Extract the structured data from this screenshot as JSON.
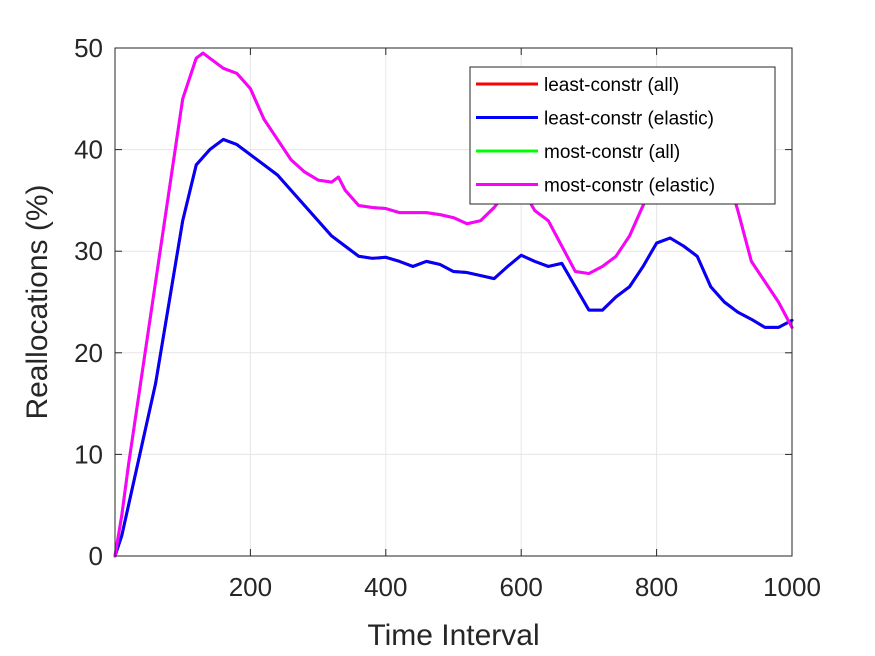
{
  "chart_data": {
    "type": "line",
    "xlabel": "Time Interval",
    "ylabel": "Reallocations (%)",
    "xlim": [
      0,
      1000
    ],
    "ylim": [
      0,
      50
    ],
    "xticks": [
      200,
      400,
      600,
      800,
      1000
    ],
    "yticks": [
      0,
      10,
      20,
      30,
      40,
      50
    ],
    "xtick_labels": [
      "200",
      "400",
      "600",
      "800",
      "1000"
    ],
    "ytick_labels": [
      "0",
      "10",
      "20",
      "30",
      "40",
      "50"
    ],
    "grid": true,
    "legend_position": "top-right",
    "series": [
      {
        "name": "least-constr (all)",
        "color": "#ff0000",
        "x": [
          0,
          10,
          20,
          40,
          60,
          80,
          100,
          120,
          140,
          160,
          180,
          200,
          220,
          240,
          260,
          280,
          300,
          320,
          340,
          360,
          380,
          400,
          420,
          440,
          460,
          480,
          500,
          520,
          540,
          560,
          580,
          600,
          620,
          640,
          660,
          680,
          700,
          720,
          740,
          760,
          780,
          800,
          820,
          840,
          860,
          880,
          900,
          920,
          940,
          960,
          980,
          1000
        ],
        "y": [
          0,
          2,
          5,
          11,
          17,
          25,
          33,
          38.5,
          40,
          41,
          40.5,
          39.5,
          38.5,
          37.5,
          36,
          34.5,
          33,
          31.5,
          30.5,
          29.5,
          29.3,
          29.4,
          29,
          28.5,
          29,
          28.7,
          28,
          27.9,
          27.6,
          27.3,
          28.5,
          29.6,
          29,
          28.5,
          28.8,
          26.5,
          24.2,
          24.2,
          25.5,
          26.5,
          28.5,
          30.8,
          31.3,
          30.5,
          29.5,
          26.5,
          25,
          24,
          23.3,
          22.5,
          22.5,
          23.2
        ]
      },
      {
        "name": "least-constr (elastic)",
        "color": "#0000ff",
        "x": [
          0,
          10,
          20,
          40,
          60,
          80,
          100,
          120,
          140,
          160,
          180,
          200,
          220,
          240,
          260,
          280,
          300,
          320,
          340,
          360,
          380,
          400,
          420,
          440,
          460,
          480,
          500,
          520,
          540,
          560,
          580,
          600,
          620,
          640,
          660,
          680,
          700,
          720,
          740,
          760,
          780,
          800,
          820,
          840,
          860,
          880,
          900,
          920,
          940,
          960,
          980,
          1000
        ],
        "y": [
          0,
          2,
          5,
          11,
          17,
          25,
          33,
          38.5,
          40,
          41,
          40.5,
          39.5,
          38.5,
          37.5,
          36,
          34.5,
          33,
          31.5,
          30.5,
          29.5,
          29.3,
          29.4,
          29,
          28.5,
          29,
          28.7,
          28,
          27.9,
          27.6,
          27.3,
          28.5,
          29.6,
          29,
          28.5,
          28.8,
          26.5,
          24.2,
          24.2,
          25.5,
          26.5,
          28.5,
          30.8,
          31.3,
          30.5,
          29.5,
          26.5,
          25,
          24,
          23.3,
          22.5,
          22.5,
          23.2
        ]
      },
      {
        "name": "most-constr (all)",
        "color": "#00ff00",
        "x": [
          0,
          10,
          20,
          40,
          60,
          80,
          100,
          120,
          130,
          140,
          160,
          180,
          200,
          220,
          240,
          260,
          280,
          300,
          320,
          330,
          340,
          360,
          380,
          400,
          420,
          440,
          460,
          480,
          500,
          520,
          540,
          560,
          580,
          600,
          620,
          640,
          660,
          680,
          700,
          720,
          740,
          760,
          780,
          800,
          820,
          840,
          860,
          880,
          900,
          920,
          940,
          960,
          980,
          1000
        ],
        "y": [
          0,
          4,
          9,
          18,
          27,
          36,
          45,
          49,
          49.5,
          49,
          48,
          47.5,
          46,
          43,
          41,
          39,
          37.8,
          37,
          36.8,
          37.3,
          36,
          34.5,
          34.3,
          34.2,
          33.8,
          33.8,
          33.8,
          33.6,
          33.3,
          32.7,
          33,
          34.3,
          36,
          36.3,
          34,
          33,
          30.5,
          28,
          27.8,
          28.5,
          29.5,
          31.5,
          34.5,
          37,
          38.5,
          39.5,
          39.8,
          39.5,
          38.5,
          34,
          29,
          27,
          25,
          22.5
        ]
      },
      {
        "name": "most-constr (elastic)",
        "color": "#ff00ff",
        "x": [
          0,
          10,
          20,
          40,
          60,
          80,
          100,
          120,
          130,
          140,
          160,
          180,
          200,
          220,
          240,
          260,
          280,
          300,
          320,
          330,
          340,
          360,
          380,
          400,
          420,
          440,
          460,
          480,
          500,
          520,
          540,
          560,
          580,
          600,
          620,
          640,
          660,
          680,
          700,
          720,
          740,
          760,
          780,
          800,
          820,
          840,
          860,
          880,
          900,
          920,
          940,
          960,
          980,
          1000
        ],
        "y": [
          0,
          4,
          9,
          18,
          27,
          36,
          45,
          49,
          49.5,
          49,
          48,
          47.5,
          46,
          43,
          41,
          39,
          37.8,
          37,
          36.8,
          37.3,
          36,
          34.5,
          34.3,
          34.2,
          33.8,
          33.8,
          33.8,
          33.6,
          33.3,
          32.7,
          33,
          34.3,
          36,
          36.3,
          34,
          33,
          30.5,
          28,
          27.8,
          28.5,
          29.5,
          31.5,
          34.5,
          37,
          38.5,
          39.5,
          39.8,
          39.5,
          38.5,
          34,
          29,
          27,
          25,
          22.5
        ]
      }
    ]
  }
}
